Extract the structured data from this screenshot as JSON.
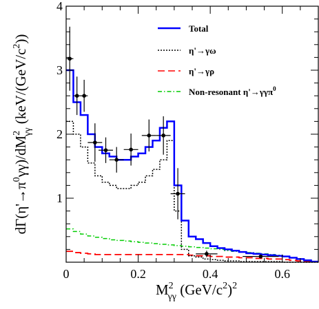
{
  "chart_data": {
    "type": "histogram-with-points",
    "xlabel": {
      "base": "M",
      "sup": "2",
      "sub": "γγ",
      "unit": " (GeV/c",
      "unit_sup": "2",
      "unit_end": ")",
      "unit_end_sup": "2"
    },
    "ylabel": {
      "a": "dΓ(η'→π",
      "a_sup": "0",
      "b": "γγ)/dM",
      "b_sup": "2",
      "b_sub": "γγ",
      "c": " (keV/(GeV/c",
      "c_sup": "2",
      "d": "))"
    },
    "xlim": [
      0,
      0.7
    ],
    "ylim": [
      0,
      4
    ],
    "x_ticks": [
      0,
      0.2,
      0.4,
      0.6
    ],
    "x_tick_labels": [
      "0",
      "0.2",
      "0.4",
      "0.6"
    ],
    "y_ticks": [
      1,
      2,
      3,
      4
    ],
    "y_tick_labels": [
      "1",
      "2",
      "3",
      "4"
    ],
    "legend_position": "top-right",
    "bin_edges": [
      0,
      0.02,
      0.04,
      0.06,
      0.08,
      0.1,
      0.12,
      0.14,
      0.16,
      0.18,
      0.2,
      0.22,
      0.24,
      0.26,
      0.28,
      0.3,
      0.32,
      0.34,
      0.36,
      0.38,
      0.4,
      0.42,
      0.44,
      0.46,
      0.48,
      0.5,
      0.52,
      0.54,
      0.56,
      0.58,
      0.6,
      0.62,
      0.64,
      0.66,
      0.68,
      0.7
    ],
    "series": [
      {
        "name": "Total",
        "style": "solid",
        "color": "#0000ff",
        "width": 2.5,
        "values": [
          3.0,
          2.5,
          2.3,
          2.0,
          1.8,
          1.7,
          1.65,
          1.6,
          1.6,
          1.65,
          1.7,
          1.8,
          1.9,
          2.1,
          2.2,
          1.2,
          0.65,
          0.4,
          0.36,
          0.3,
          0.25,
          0.22,
          0.2,
          0.18,
          0.16,
          0.14,
          0.13,
          0.12,
          0.11,
          0.1,
          0.09,
          0.07,
          0.05,
          0.03,
          0.01
        ]
      },
      {
        "name": "η'→γω",
        "style": "dotted",
        "color": "#000000",
        "width": 1.5,
        "values": [
          2.2,
          2.0,
          1.8,
          1.55,
          1.35,
          1.25,
          1.2,
          1.15,
          1.15,
          1.2,
          1.25,
          1.35,
          1.45,
          1.6,
          1.9,
          0.8,
          0.2,
          0.1,
          0.08,
          0.05,
          0.04,
          0.03,
          0.02,
          0.02,
          0.01,
          0.01,
          0.01,
          0.01,
          0.01,
          0.01,
          0.0,
          0.0,
          0.0,
          0.0,
          0.0
        ]
      },
      {
        "name": "η'→γρ",
        "style": "dashed",
        "color": "#ff0000",
        "width": 1.8,
        "values": [
          0.17,
          0.15,
          0.14,
          0.13,
          0.12,
          0.12,
          0.12,
          0.12,
          0.12,
          0.12,
          0.12,
          0.12,
          0.12,
          0.12,
          0.12,
          0.12,
          0.12,
          0.11,
          0.1,
          0.1,
          0.09,
          0.09,
          0.08,
          0.08,
          0.07,
          0.07,
          0.06,
          0.06,
          0.05,
          0.05,
          0.04,
          0.03,
          0.02,
          0.01,
          0.01
        ]
      },
      {
        "name": "Non-resonant η'→γγπ0",
        "style": "dashdot",
        "color": "#00cc00",
        "width": 1.5,
        "values": [
          0.52,
          0.48,
          0.44,
          0.41,
          0.39,
          0.37,
          0.35,
          0.34,
          0.33,
          0.32,
          0.31,
          0.3,
          0.29,
          0.28,
          0.27,
          0.26,
          0.25,
          0.24,
          0.23,
          0.22,
          0.21,
          0.2,
          0.18,
          0.17,
          0.16,
          0.15,
          0.14,
          0.13,
          0.12,
          0.11,
          0.09,
          0.07,
          0.05,
          0.03,
          0.01
        ]
      }
    ],
    "data_points": {
      "name": "Data",
      "x": [
        0.01,
        0.03,
        0.05,
        0.08,
        0.11,
        0.14,
        0.18,
        0.23,
        0.27,
        0.31,
        0.39,
        0.54
      ],
      "y": [
        3.18,
        2.6,
        2.6,
        1.87,
        1.75,
        1.6,
        1.76,
        1.98,
        1.98,
        1.07,
        0.13,
        0.09
      ],
      "yerr": [
        0.5,
        0.3,
        0.25,
        0.3,
        0.2,
        0.2,
        0.25,
        0.25,
        0.3,
        0.4,
        0.05,
        0.03
      ],
      "xerr": [
        0.01,
        0.01,
        0.01,
        0.02,
        0.02,
        0.02,
        0.02,
        0.02,
        0.02,
        0.02,
        0.03,
        0.05
      ]
    },
    "legend": [
      {
        "label": "Total",
        "style": "solid",
        "color": "#0000ff"
      },
      {
        "label": "η'→γω",
        "style": "dotted",
        "color": "#000000"
      },
      {
        "label": "η'→γρ",
        "style": "dashed",
        "color": "#ff0000"
      },
      {
        "label_main": "Non-resonant η'→γγπ",
        "label_sup": "0",
        "style": "dashdot",
        "color": "#00cc00"
      }
    ]
  }
}
